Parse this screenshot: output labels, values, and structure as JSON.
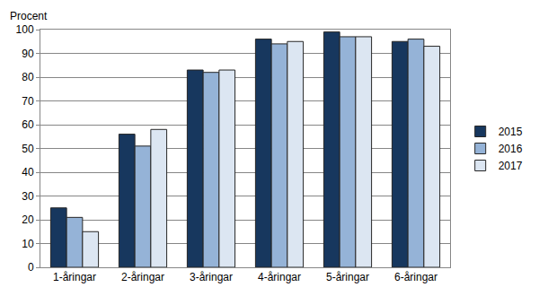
{
  "chart_data": {
    "type": "bar",
    "ylabel": "Procent",
    "categories": [
      "1-åringar",
      "2-åringar",
      "3-åringar",
      "4-åringar",
      "5-åringar",
      "6-åringar"
    ],
    "series": [
      {
        "name": "2015",
        "color": "#17375e",
        "values": [
          25,
          56,
          83,
          96,
          99,
          95
        ]
      },
      {
        "name": "2016",
        "color": "#95b3d7",
        "values": [
          21,
          51,
          82,
          94,
          97,
          96
        ]
      },
      {
        "name": "2017",
        "color": "#dce6f2",
        "values": [
          15,
          58,
          83,
          95,
          97,
          93
        ]
      }
    ],
    "ylim": [
      0,
      100
    ],
    "yticks": [
      0,
      10,
      20,
      30,
      40,
      50,
      60,
      70,
      80,
      90,
      100
    ],
    "grid": true,
    "legend": "right"
  }
}
